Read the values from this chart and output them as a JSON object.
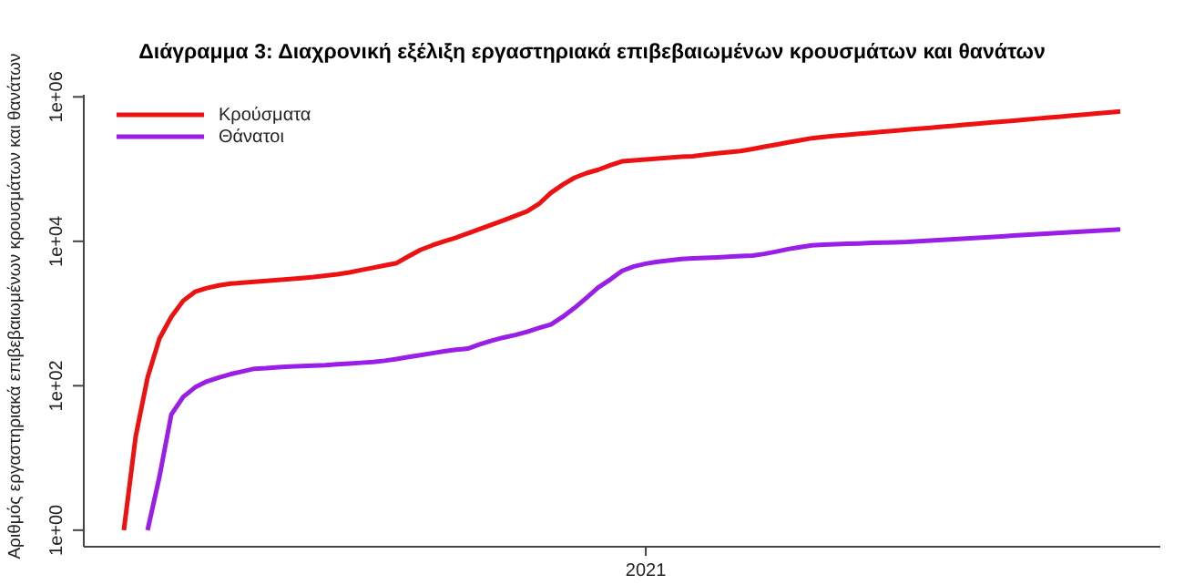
{
  "chart_data": {
    "type": "line",
    "title": "Διάγραμμα 3: Διαχρονική εξέλιξη εργαστηριακά επιβεβαιωμένων κρουσμάτων και θανάτων",
    "ylabel": "Αριθμός εργαστηριακά επιβεβαιωμένων κρουσμάτων και θανάτων",
    "log": "y",
    "grid": false,
    "legend": "top left",
    "marker": "none",
    "line_style": "solid",
    "ylim": [
      0.59,
      1070000
    ],
    "yticks": [
      {
        "value": 1,
        "label": "1e+00"
      },
      {
        "value": 100,
        "label": "1e+02"
      },
      {
        "value": 10000,
        "label": "1e+04"
      },
      {
        "value": 1000000,
        "label": "1e+06"
      }
    ],
    "categories": [
      null,
      null,
      null,
      null,
      null,
      null,
      null,
      null,
      null,
      null,
      null,
      null,
      null,
      null,
      null,
      null,
      null,
      null,
      null,
      null,
      null,
      null,
      null,
      null,
      null,
      null,
      null,
      null,
      null,
      null,
      null,
      null,
      null,
      null,
      null,
      null,
      null,
      null,
      null,
      null,
      null,
      null,
      null,
      null,
      "2021",
      null,
      null,
      null,
      null,
      null,
      null,
      null,
      null,
      null,
      null,
      null,
      null,
      null,
      null,
      null,
      null,
      null,
      null,
      null,
      null,
      null,
      null,
      null,
      null,
      null,
      null,
      null,
      null,
      null,
      null,
      null,
      null,
      null,
      null,
      null,
      null,
      null,
      null,
      null,
      null
    ],
    "series": [
      {
        "name": "Κρούσματα",
        "color": "#ee1111",
        "values": [
          1,
          20,
          130,
          450,
          900,
          1500,
          2000,
          2250,
          2450,
          2600,
          2680,
          2760,
          2840,
          2920,
          3010,
          3100,
          3200,
          3350,
          3500,
          3700,
          4000,
          4300,
          4650,
          5000,
          6200,
          7600,
          8800,
          10000,
          11200,
          12900,
          14800,
          17000,
          19500,
          22500,
          26000,
          33000,
          47000,
          61000,
          76000,
          88000,
          98000,
          113000,
          128000,
          132000,
          136000,
          140000,
          144000,
          148000,
          151000,
          158000,
          165000,
          172000,
          178000,
          190000,
          204000,
          218000,
          234000,
          250000,
          268000,
          280000,
          289000,
          298000,
          308000,
          318000,
          329000,
          340000,
          352000,
          362000,
          374000,
          386000,
          399000,
          412000,
          426000,
          440000,
          454000,
          469000,
          485000,
          501000,
          517000,
          534000,
          552000,
          570000,
          589000,
          608000,
          630000
        ]
      },
      {
        "name": "Θάνατοι",
        "color": "#9a1ee6",
        "values": [
          null,
          null,
          1,
          5.5,
          40,
          70,
          95,
          115,
          130,
          145,
          158,
          172,
          175,
          180,
          184,
          187,
          190,
          193,
          198,
          203,
          208,
          213,
          222,
          235,
          250,
          265,
          282,
          300,
          315,
          327,
          375,
          420,
          465,
          505,
          560,
          630,
          705,
          900,
          1200,
          1650,
          2300,
          2950,
          3900,
          4500,
          4900,
          5200,
          5450,
          5700,
          5800,
          5900,
          6000,
          6100,
          6250,
          6350,
          6700,
          7200,
          7800,
          8300,
          8800,
          9000,
          9100,
          9250,
          9350,
          9500,
          9600,
          9700,
          9800,
          10000,
          10250,
          10500,
          10700,
          10950,
          11200,
          11450,
          11700,
          12000,
          12250,
          12550,
          12800,
          13100,
          13400,
          13700,
          14000,
          14300,
          14600
        ]
      }
    ]
  }
}
